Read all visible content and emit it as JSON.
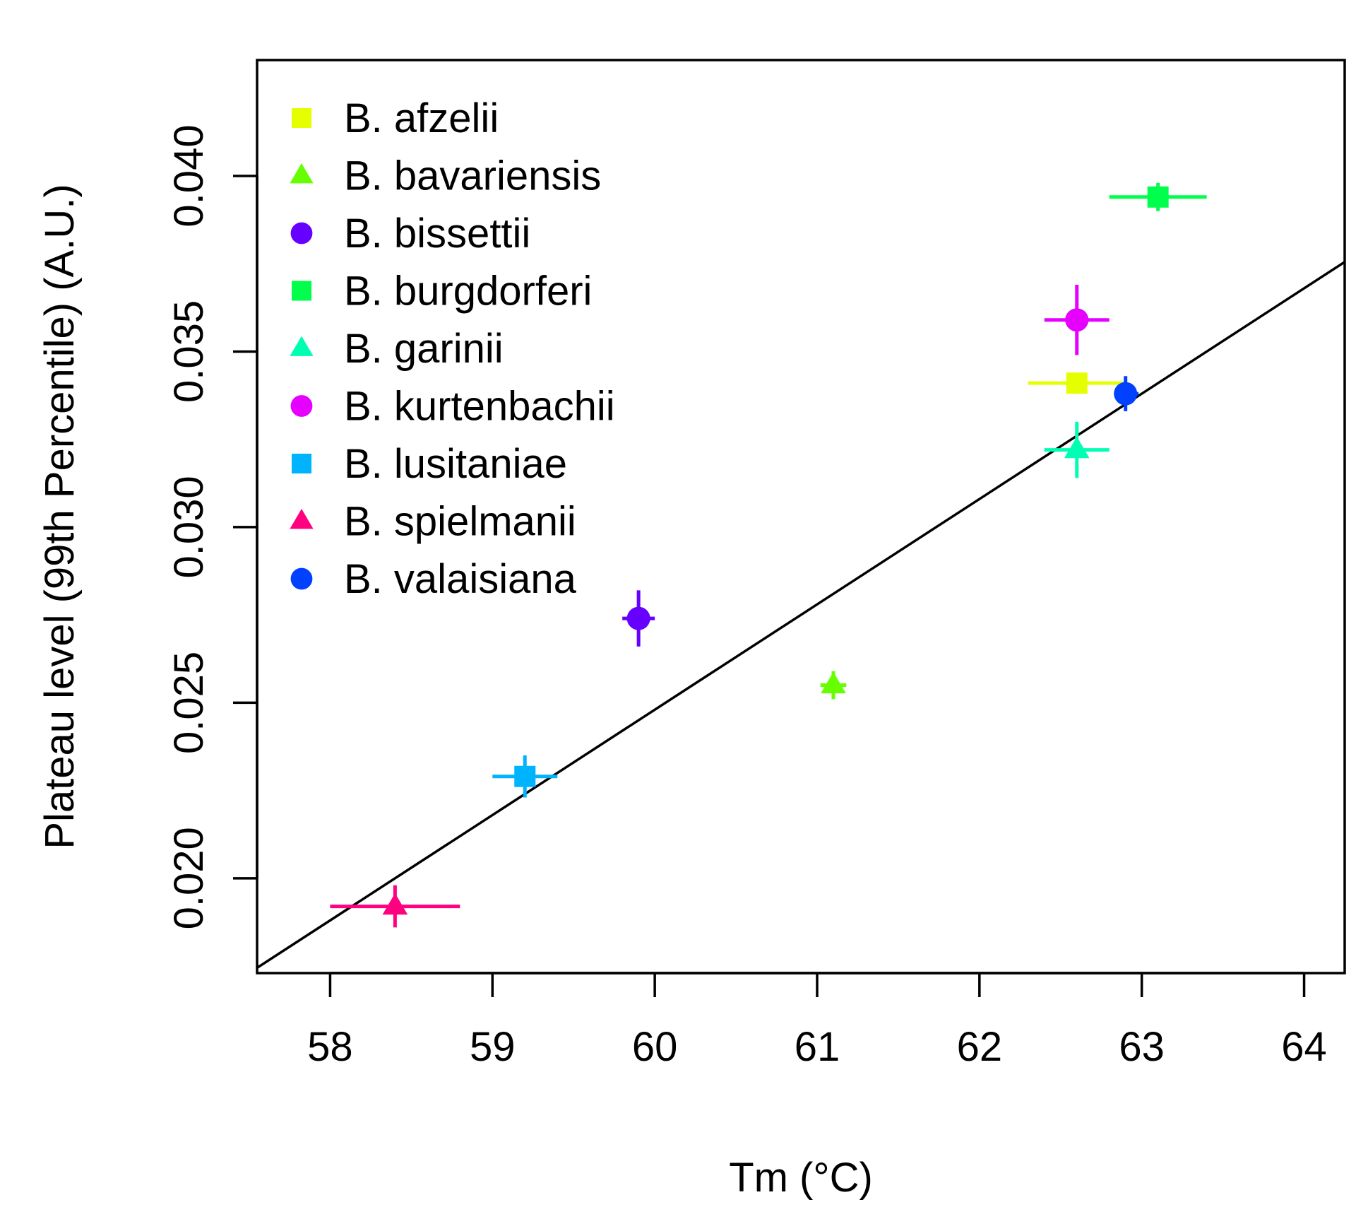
{
  "chart_data": {
    "type": "scatter",
    "title": "",
    "xlabel": "Tm (°C)",
    "ylabel": "Plateau level (99th Percentile) (A.U.)",
    "xlim": [
      57.55,
      64.25
    ],
    "ylim": [
      0.0173,
      0.0433
    ],
    "x_ticks": [
      58,
      59,
      60,
      61,
      62,
      63,
      64
    ],
    "x_tick_labels": [
      "58",
      "59",
      "60",
      "61",
      "62",
      "63",
      "64"
    ],
    "y_ticks": [
      0.02,
      0.025,
      0.03,
      0.035,
      0.04
    ],
    "y_tick_labels": [
      "0.020",
      "0.025",
      "0.030",
      "0.035",
      "0.040"
    ],
    "grid": false,
    "legend_position": "top-left",
    "series": [
      {
        "name": "B. afzelii",
        "color": "#E6FF00",
        "marker": "square",
        "x": 62.6,
        "y": 0.0341,
        "x_err": [
          62.3,
          62.9
        ],
        "y_err": [
          0.0338,
          0.0344
        ]
      },
      {
        "name": "B. bavariensis",
        "color": "#66FF00",
        "marker": "triangle",
        "x": 61.1,
        "y": 0.0255,
        "x_err": [
          61.02,
          61.18
        ],
        "y_err": [
          0.0251,
          0.0259
        ]
      },
      {
        "name": "B. bissettii",
        "color": "#6600FF",
        "marker": "circle",
        "x": 59.9,
        "y": 0.0274,
        "x_err": [
          59.8,
          60.0
        ],
        "y_err": [
          0.0266,
          0.0282
        ]
      },
      {
        "name": "B. burgdorferi",
        "color": "#00FF4D",
        "marker": "square",
        "x": 63.1,
        "y": 0.0394,
        "x_err": [
          62.8,
          63.4
        ],
        "y_err": [
          0.039,
          0.0398
        ]
      },
      {
        "name": "B. garinii",
        "color": "#00FFB3",
        "marker": "triangle",
        "x": 62.6,
        "y": 0.0322,
        "x_err": [
          62.4,
          62.8
        ],
        "y_err": [
          0.0314,
          0.033
        ]
      },
      {
        "name": "B. kurtenbachii",
        "color": "#E600FF",
        "marker": "circle",
        "x": 62.6,
        "y": 0.0359,
        "x_err": [
          62.4,
          62.8
        ],
        "y_err": [
          0.0349,
          0.0369
        ]
      },
      {
        "name": "B. lusitaniae",
        "color": "#00B3FF",
        "marker": "square",
        "x": 59.2,
        "y": 0.0229,
        "x_err": [
          59.0,
          59.4
        ],
        "y_err": [
          0.0223,
          0.0235
        ]
      },
      {
        "name": "B. spielmanii",
        "color": "#FF0080",
        "marker": "triangle",
        "x": 58.4,
        "y": 0.0192,
        "x_err": [
          58.0,
          58.8
        ],
        "y_err": [
          0.0186,
          0.0198
        ]
      },
      {
        "name": "B. valaisiana",
        "color": "#0040FF",
        "marker": "circle",
        "x": 62.9,
        "y": 0.0338,
        "x_err": [
          62.85,
          62.98
        ],
        "y_err": [
          0.0333,
          0.0343
        ]
      }
    ],
    "fit_line": {
      "type": "linear",
      "slope": 0.003,
      "intercept": -0.1552,
      "color": "#000000"
    }
  }
}
